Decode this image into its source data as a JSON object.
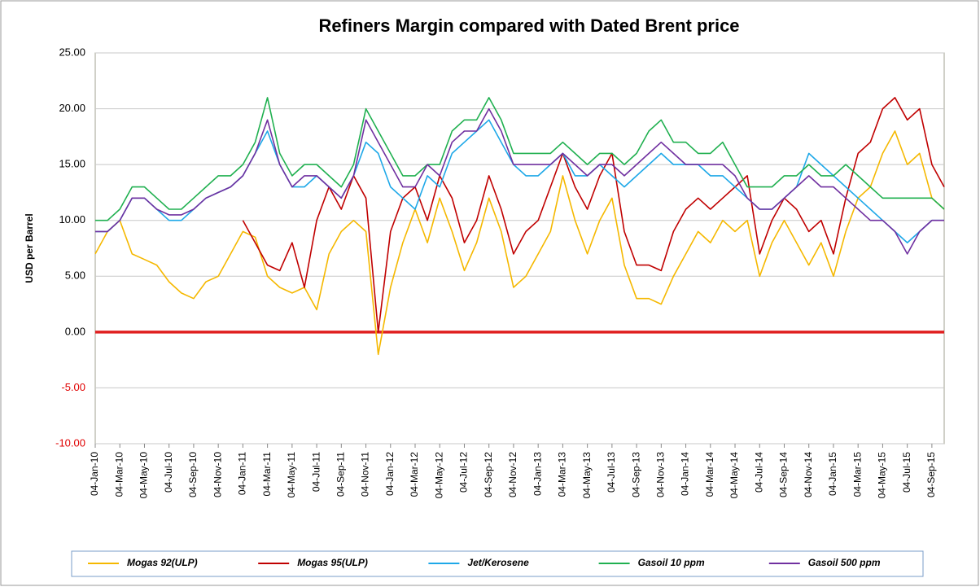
{
  "chart_data": {
    "type": "line",
    "title": "Refiners Margin compared with Dated Brent price",
    "y_label": "USD per  Barrel",
    "categories": [
      "04-Jan-10",
      null,
      "04-Mar-10",
      null,
      "04-May-10",
      null,
      "04-Jul-10",
      null,
      "04-Sep-10",
      null,
      "04-Nov-10",
      null,
      "04-Jan-11",
      null,
      "04-Mar-11",
      null,
      "04-May-11",
      null,
      "04-Jul-11",
      null,
      "04-Sep-11",
      null,
      "04-Nov-11",
      null,
      "04-Jan-12",
      null,
      "04-Mar-12",
      null,
      "04-May-12",
      null,
      "04-Jul-12",
      null,
      "04-Sep-12",
      null,
      "04-Nov-12",
      null,
      "04-Jan-13",
      null,
      "04-Mar-13",
      null,
      "04-May-13",
      null,
      "04-Jul-13",
      null,
      "04-Sep-13",
      null,
      "04-Nov-13",
      null,
      "04-Jan-14",
      null,
      "04-Mar-14",
      null,
      "04-May-14",
      null,
      "04-Jul-14",
      null,
      "04-Sep-14",
      null,
      "04-Nov-14",
      null,
      "04-Jan-15",
      null,
      "04-Mar-15",
      null,
      "04-May-15",
      null,
      "04-Jul-15",
      null,
      "04-Sep-15",
      null
    ],
    "series": [
      {
        "name": "Mogas 92(ULP)",
        "color": "#f5b800",
        "values": [
          7,
          9,
          10,
          7,
          6.5,
          6,
          4.5,
          3.5,
          3,
          4.5,
          5,
          7,
          9,
          8.5,
          5,
          4,
          3.5,
          4,
          2,
          7,
          9,
          10,
          9,
          -2,
          4,
          8,
          11,
          8,
          12,
          9,
          5.5,
          8,
          12,
          9,
          4,
          5,
          7,
          9,
          14,
          10,
          7,
          10,
          12,
          6,
          3,
          3,
          2.5,
          5,
          7,
          9,
          8,
          10,
          9,
          10,
          5,
          8,
          10,
          8,
          6,
          8,
          5,
          9,
          12,
          13,
          16,
          18,
          15,
          16,
          12,
          11
        ]
      },
      {
        "name": "Mogas 95(ULP)",
        "color": "#c00000",
        "values": [
          null,
          null,
          null,
          null,
          null,
          null,
          null,
          null,
          null,
          null,
          null,
          null,
          10,
          8,
          6,
          5.5,
          8,
          4,
          10,
          13,
          11,
          14,
          12,
          0,
          9,
          12,
          13,
          10,
          14,
          12,
          8,
          10,
          14,
          11,
          7,
          9,
          10,
          13,
          16,
          13,
          11,
          14,
          16,
          9,
          6,
          6,
          5.5,
          9,
          11,
          12,
          11,
          12,
          13,
          14,
          7,
          10,
          12,
          11,
          9,
          10,
          7,
          12,
          16,
          17,
          20,
          21,
          19,
          20,
          15,
          13
        ]
      },
      {
        "name": "Jet/Kerosene",
        "color": "#1ea8e8",
        "values": [
          9,
          9,
          10,
          12,
          12,
          11,
          10,
          10,
          11,
          12,
          12.5,
          13,
          14,
          16,
          18,
          15,
          13,
          13,
          14,
          13,
          12,
          14,
          17,
          16,
          13,
          12,
          11,
          14,
          13,
          16,
          17,
          18,
          19,
          17,
          15,
          14,
          14,
          15,
          16,
          14,
          14,
          15,
          14,
          13,
          14,
          15,
          16,
          15,
          15,
          15,
          14,
          14,
          13,
          12,
          11,
          11,
          12,
          13,
          16,
          15,
          14,
          13,
          12,
          11,
          10,
          9,
          8,
          9,
          10,
          10
        ]
      },
      {
        "name": "Gasoil 10 ppm",
        "color": "#20b050",
        "values": [
          10,
          10,
          11,
          13,
          13,
          12,
          11,
          11,
          12,
          13,
          14,
          14,
          15,
          17,
          21,
          16,
          14,
          15,
          15,
          14,
          13,
          15,
          20,
          18,
          16,
          14,
          14,
          15,
          15,
          18,
          19,
          19,
          21,
          19,
          16,
          16,
          16,
          16,
          17,
          16,
          15,
          16,
          16,
          15,
          16,
          18,
          19,
          17,
          17,
          16,
          16,
          17,
          15,
          13,
          13,
          13,
          14,
          14,
          15,
          14,
          14,
          15,
          14,
          13,
          12,
          12,
          12,
          12,
          12,
          11
        ]
      },
      {
        "name": "Gasoil 500 ppm",
        "color": "#7030a0",
        "values": [
          9,
          9,
          10,
          12,
          12,
          11,
          10.5,
          10.5,
          11,
          12,
          12.5,
          13,
          14,
          16,
          19,
          15,
          13,
          14,
          14,
          13,
          12,
          14,
          19,
          17,
          15,
          13,
          13,
          15,
          14,
          17,
          18,
          18,
          20,
          18,
          15,
          15,
          15,
          15,
          16,
          15,
          14,
          15,
          15,
          14,
          15,
          16,
          17,
          16,
          15,
          15,
          15,
          15,
          14,
          12,
          11,
          11,
          12,
          13,
          14,
          13,
          13,
          12,
          11,
          10,
          10,
          9,
          7,
          9,
          10,
          10
        ]
      }
    ],
    "zero_line": {
      "value": 0,
      "color": "#e02020"
    },
    "ylim": [
      -10,
      25
    ],
    "yticks": [
      {
        "value": -10,
        "label": "-10.00"
      },
      {
        "value": -5,
        "label": "-5.00"
      },
      {
        "value": 0,
        "label": "0.00"
      },
      {
        "value": 5,
        "label": "5.00"
      },
      {
        "value": 10,
        "label": "10.00"
      },
      {
        "value": 15,
        "label": "15.00"
      },
      {
        "value": 20,
        "label": "20.00"
      },
      {
        "value": 25,
        "label": "25.00"
      }
    ],
    "negative_tick_color": "#e00000",
    "grid": true,
    "legend": "bottom"
  }
}
